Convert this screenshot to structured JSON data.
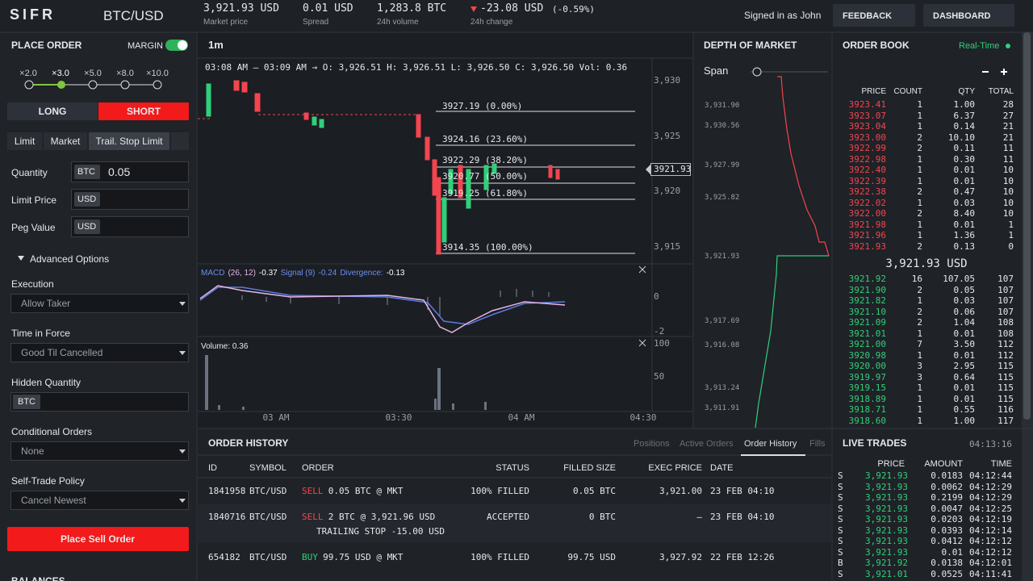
{
  "header": {
    "logo": "SIFR",
    "pair": "BTC/USD",
    "stats": [
      {
        "value": "3,921.93 USD",
        "label": "Market price"
      },
      {
        "value": "0.01 USD",
        "label": "Spread"
      },
      {
        "value": "1,283.8 BTC",
        "label": "24h volume"
      }
    ],
    "change": {
      "value": "-23.08 USD",
      "pct": "(-0.59%)",
      "label": "24h change"
    },
    "signed_in": "Signed in as John",
    "buttons": [
      "FEEDBACK",
      "DASHBOARD"
    ]
  },
  "place_order": {
    "title": "PLACE ORDER",
    "margin": "MARGIN",
    "leverage": [
      "×2.0",
      "×3.0",
      "×5.0",
      "×8.0",
      "×10.0"
    ],
    "sides": [
      "LONG",
      "SHORT"
    ],
    "order_types": [
      "Limit",
      "Market",
      "Trail. Stop Limit"
    ],
    "fields": [
      {
        "label": "Quantity",
        "unit": "BTC",
        "value": "0.05"
      },
      {
        "label": "Limit Price",
        "unit": "USD"
      },
      {
        "label": "Peg Value",
        "unit": "USD"
      }
    ],
    "advanced": "Advanced Options",
    "selects": [
      {
        "label": "Execution",
        "value": "Allow Taker"
      },
      {
        "label": "Time in Force",
        "value": "Good Til Cancelled"
      }
    ],
    "hidden": {
      "label": "Hidden Quantity",
      "unit": "BTC"
    },
    "selects2": [
      {
        "label": "Conditional Orders",
        "value": "None"
      },
      {
        "label": "Self-Trade Policy",
        "value": "Cancel Newest"
      }
    ],
    "submit": "Place Sell Order",
    "balances": "BALANCES"
  },
  "chart": {
    "interval": "1m",
    "info": "03:08 AM — 03:09 AM → O: 3,926.51 H: 3,926.51 L: 3,926.50 C: 3,926.50 Vol: 0.36",
    "fib_levels": [
      "3927.19 (0.00%)",
      "3924.16 (23.60%)",
      "3922.29 (38.20%)",
      "3920.77 (50.00%)",
      "3919.25 (61.80%)",
      "3914.35 (100.00%)"
    ],
    "price_ticks": [
      "3,930",
      "3,925",
      "3,920",
      "3,915"
    ],
    "current_price": "3921.93",
    "macd": {
      "name": "MACD",
      "params": "(26, 12)",
      "value": "-0.37",
      "signal": "Signal (9)",
      "signal_value": "-0.24",
      "divergence": "Divergence:",
      "divergence_value": "-0.13",
      "ticks": [
        "0",
        "-2"
      ]
    },
    "volume": {
      "label": "Volume: 0.36",
      "ticks": [
        "100",
        "50"
      ]
    },
    "time_ticks": [
      "03 AM",
      "03:30",
      "04 AM",
      "04:30"
    ]
  },
  "depth": {
    "title": "DEPTH OF MARKET",
    "span": "Span",
    "ticks": [
      "3,931.90",
      "3,930.56",
      "3,927.99",
      "3,925.82",
      "3,921.93",
      "3,917.69",
      "3,916.08",
      "3,913.24",
      "3,911.91"
    ]
  },
  "order_book": {
    "title": "ORDER BOOK",
    "mode": "Real-Time",
    "columns": [
      "PRICE",
      "COUNT",
      "QTY",
      "TOTAL"
    ],
    "asks": [
      [
        "3923.41",
        "1",
        "1.00",
        "28"
      ],
      [
        "3923.07",
        "1",
        "6.37",
        "27"
      ],
      [
        "3923.04",
        "1",
        "0.14",
        "21"
      ],
      [
        "3923.00",
        "2",
        "10.10",
        "21"
      ],
      [
        "3922.99",
        "2",
        "0.11",
        "11"
      ],
      [
        "3922.98",
        "1",
        "0.30",
        "11"
      ],
      [
        "3922.40",
        "1",
        "0.01",
        "10"
      ],
      [
        "3922.39",
        "1",
        "0.01",
        "10"
      ],
      [
        "3922.38",
        "2",
        "0.47",
        "10"
      ],
      [
        "3922.02",
        "1",
        "0.03",
        "10"
      ],
      [
        "3922.00",
        "2",
        "8.40",
        "10"
      ],
      [
        "3921.98",
        "1",
        "0.01",
        "1"
      ],
      [
        "3921.96",
        "1",
        "1.36",
        "1"
      ],
      [
        "3921.93",
        "2",
        "0.13",
        "0"
      ]
    ],
    "mid": "3,921.93 USD",
    "bids": [
      [
        "3921.92",
        "16",
        "107.05",
        "107"
      ],
      [
        "3921.90",
        "2",
        "0.05",
        "107"
      ],
      [
        "3921.82",
        "1",
        "0.03",
        "107"
      ],
      [
        "3921.10",
        "2",
        "0.06",
        "107"
      ],
      [
        "3921.09",
        "2",
        "1.04",
        "108"
      ],
      [
        "3921.01",
        "1",
        "0.01",
        "108"
      ],
      [
        "3921.00",
        "7",
        "3.50",
        "112"
      ],
      [
        "3920.98",
        "1",
        "0.01",
        "112"
      ],
      [
        "3920.00",
        "3",
        "2.95",
        "115"
      ],
      [
        "3919.97",
        "3",
        "0.64",
        "115"
      ],
      [
        "3919.15",
        "1",
        "0.01",
        "115"
      ],
      [
        "3918.89",
        "1",
        "0.01",
        "115"
      ],
      [
        "3918.71",
        "1",
        "0.55",
        "116"
      ],
      [
        "3918.60",
        "1",
        "1.00",
        "117"
      ]
    ]
  },
  "order_history": {
    "title": "ORDER HISTORY",
    "tabs": [
      "Positions",
      "Active Orders",
      "Order History",
      "Fills"
    ],
    "columns": [
      "ID",
      "SYMBOL",
      "ORDER",
      "STATUS",
      "FILLED SIZE",
      "EXEC PRICE",
      "DATE"
    ],
    "rows": [
      {
        "id": "1841958",
        "symbol": "BTC/USD",
        "side": "SELL",
        "order": "0.05 BTC @ MKT",
        "status": "100% FILLED",
        "filled": "0.05 BTC",
        "price": "3,921.00",
        "date": "23 FEB 04:10"
      },
      {
        "id": "1840716",
        "symbol": "BTC/USD",
        "side": "SELL",
        "order": "2 BTC @ 3,921.96 USD",
        "status": "ACCEPTED",
        "filled": "0 BTC",
        "price": "–",
        "date": "23 FEB 04:10",
        "note": "TRAILING STOP -15.00 USD"
      },
      {
        "id": "654182",
        "symbol": "BTC/USD",
        "side": "BUY",
        "order": "99.75 USD @ MKT",
        "status": "100% FILLED",
        "filled": "99.75 USD",
        "price": "3,927.92",
        "date": "22 FEB 12:26"
      }
    ]
  },
  "live_trades": {
    "title": "LIVE TRADES",
    "time": "04:13:16",
    "columns": [
      "PRICE",
      "AMOUNT",
      "TIME"
    ],
    "rows": [
      [
        "S",
        "3,921.93",
        "0.0183",
        "04:12:44"
      ],
      [
        "S",
        "3,921.93",
        "0.0062",
        "04:12:29"
      ],
      [
        "S",
        "3,921.93",
        "0.2199",
        "04:12:29"
      ],
      [
        "S",
        "3,921.93",
        "0.0047",
        "04:12:25"
      ],
      [
        "S",
        "3,921.93",
        "0.0203",
        "04:12:19"
      ],
      [
        "S",
        "3,921.93",
        "0.0393",
        "04:12:14"
      ],
      [
        "S",
        "3,921.93",
        "0.0412",
        "04:12:12"
      ],
      [
        "S",
        "3,921.93",
        "0.01",
        "04:12:12"
      ],
      [
        "B",
        "3,921.92",
        "0.0138",
        "04:12:01"
      ],
      [
        "S",
        "3,921.01",
        "0.0525",
        "04:11:41"
      ]
    ]
  }
}
